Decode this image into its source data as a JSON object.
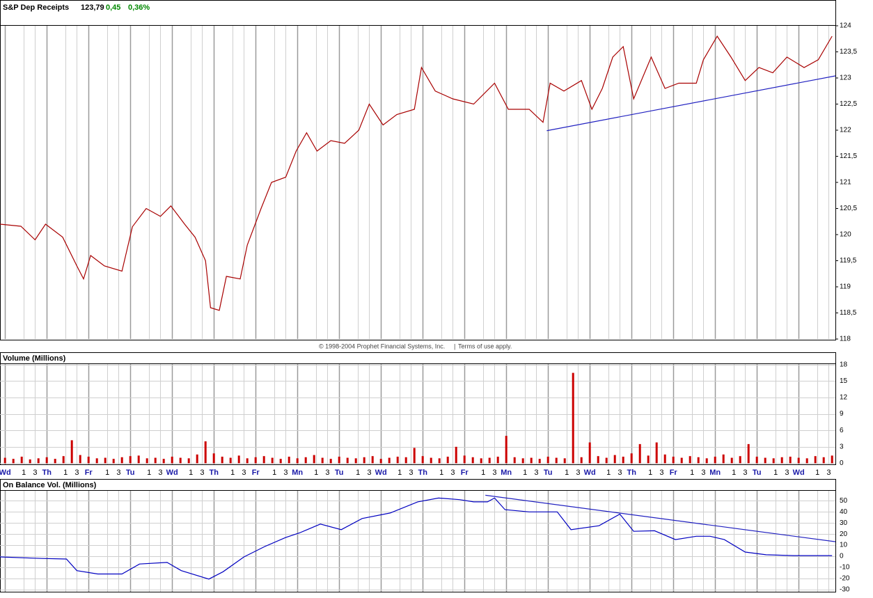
{
  "header": {
    "title": "S&P Dep Receipts",
    "last": "123,79",
    "change": "0,45",
    "change_pct": "0,36%"
  },
  "footer": {
    "copyright": "© 1998-2004 Prophet Financial Systems, Inc.",
    "separator": "|",
    "terms": "Terms of use apply."
  },
  "chart_data": [
    {
      "type": "line",
      "color": "#a80000",
      "hgrid": false,
      "vgrid": true,
      "xlim": [
        -0.12,
        19.88
      ],
      "ylim": [
        118,
        124
      ],
      "yticks": [
        118,
        {
          "value": 118.5,
          "label": "118,5"
        },
        119,
        {
          "value": 119.5,
          "label": "119,5"
        },
        120,
        {
          "value": 120.5,
          "label": "120,5"
        },
        121,
        {
          "value": 121.5,
          "label": "121,5"
        },
        122,
        {
          "value": 122.5,
          "label": "122,5"
        },
        123,
        {
          "value": 123.5,
          "label": "123,5"
        },
        124
      ],
      "x": [
        -0.12,
        0.38,
        0.72,
        0.97,
        1.38,
        1.72,
        1.88,
        2.05,
        2.38,
        2.8,
        3.05,
        3.38,
        3.72,
        3.97,
        4.3,
        4.55,
        4.8,
        4.92,
        5.13,
        5.3,
        5.63,
        5.8,
        6.13,
        6.38,
        6.72,
        6.97,
        7.22,
        7.47,
        7.8,
        8.13,
        8.47,
        8.72,
        9.05,
        9.38,
        9.8,
        9.97,
        10.3,
        10.72,
        11.22,
        11.72,
        12.05,
        12.55,
        12.88,
        13.05,
        13.38,
        13.8,
        14.05,
        14.3,
        14.55,
        14.8,
        15.05,
        15.47,
        15.8,
        16.13,
        16.55,
        16.72,
        17.05,
        17.38,
        17.72,
        18.05,
        18.38,
        18.72,
        19.13,
        19.47,
        19.8
      ],
      "values": [
        120.2,
        120.16,
        119.9,
        120.2,
        119.95,
        119.4,
        119.15,
        119.6,
        119.4,
        119.3,
        120.15,
        120.5,
        120.35,
        120.55,
        120.2,
        119.95,
        119.5,
        118.6,
        118.55,
        119.2,
        119.15,
        119.8,
        120.5,
        121.0,
        121.1,
        121.6,
        121.95,
        121.6,
        121.8,
        121.75,
        122.0,
        122.5,
        122.1,
        122.3,
        122.4,
        123.2,
        122.75,
        122.6,
        122.5,
        122.9,
        122.4,
        122.4,
        122.15,
        122.9,
        122.75,
        122.95,
        122.4,
        122.8,
        123.4,
        123.6,
        122.6,
        123.4,
        122.8,
        122.9,
        122.9,
        123.35,
        123.8,
        123.4,
        122.95,
        123.2,
        123.1,
        123.4,
        123.2,
        123.35,
        123.8
      ],
      "trendline": {
        "color": "#2020c0",
        "x": [
          12.97,
          19.88
        ],
        "values": [
          121.99,
          123.04
        ]
      }
    },
    {
      "type": "bar",
      "title": "Volume (Millions)",
      "color": "#cc0000",
      "hgrid": true,
      "vgrid": true,
      "xlim": [
        -0.12,
        19.88
      ],
      "ylim": [
        -0.2,
        18.1
      ],
      "yticks": [
        0,
        3,
        6,
        9,
        12,
        15,
        18
      ],
      "xticks": [
        {
          "value": 0,
          "label": "Wd"
        },
        {
          "value": 0.45,
          "label": "1"
        },
        {
          "value": 0.72,
          "label": "3"
        },
        {
          "value": 1,
          "label": "Th"
        },
        {
          "value": 1.45,
          "label": "1"
        },
        {
          "value": 1.72,
          "label": "3"
        },
        {
          "value": 2,
          "label": "Fr"
        },
        {
          "value": 2.45,
          "label": "1"
        },
        {
          "value": 2.72,
          "label": "3"
        },
        {
          "value": 3,
          "label": "Tu"
        },
        {
          "value": 3.45,
          "label": "1"
        },
        {
          "value": 3.72,
          "label": "3"
        },
        {
          "value": 4,
          "label": "Wd"
        },
        {
          "value": 4.45,
          "label": "1"
        },
        {
          "value": 4.72,
          "label": "3"
        },
        {
          "value": 5,
          "label": "Th"
        },
        {
          "value": 5.45,
          "label": "1"
        },
        {
          "value": 5.72,
          "label": "3"
        },
        {
          "value": 6,
          "label": "Fr"
        },
        {
          "value": 6.45,
          "label": "1"
        },
        {
          "value": 6.72,
          "label": "3"
        },
        {
          "value": 7,
          "label": "Mn"
        },
        {
          "value": 7.45,
          "label": "1"
        },
        {
          "value": 7.72,
          "label": "3"
        },
        {
          "value": 8,
          "label": "Tu"
        },
        {
          "value": 8.45,
          "label": "1"
        },
        {
          "value": 8.72,
          "label": "3"
        },
        {
          "value": 9,
          "label": "Wd"
        },
        {
          "value": 9.45,
          "label": "1"
        },
        {
          "value": 9.72,
          "label": "3"
        },
        {
          "value": 10,
          "label": "Th"
        },
        {
          "value": 10.45,
          "label": "1"
        },
        {
          "value": 10.72,
          "label": "3"
        },
        {
          "value": 11,
          "label": "Fr"
        },
        {
          "value": 11.45,
          "label": "1"
        },
        {
          "value": 11.72,
          "label": "3"
        },
        {
          "value": 12,
          "label": "Mn"
        },
        {
          "value": 12.45,
          "label": "1"
        },
        {
          "value": 12.72,
          "label": "3"
        },
        {
          "value": 13,
          "label": "Tu"
        },
        {
          "value": 13.45,
          "label": "1"
        },
        {
          "value": 13.72,
          "label": "3"
        },
        {
          "value": 14,
          "label": "Wd"
        },
        {
          "value": 14.45,
          "label": "1"
        },
        {
          "value": 14.72,
          "label": "3"
        },
        {
          "value": 15,
          "label": "Th"
        },
        {
          "value": 15.45,
          "label": "1"
        },
        {
          "value": 15.72,
          "label": "3"
        },
        {
          "value": 16,
          "label": "Fr"
        },
        {
          "value": 16.45,
          "label": "1"
        },
        {
          "value": 16.72,
          "label": "3"
        },
        {
          "value": 17,
          "label": "Mn"
        },
        {
          "value": 17.45,
          "label": "1"
        },
        {
          "value": 17.72,
          "label": "3"
        },
        {
          "value": 18,
          "label": "Tu"
        },
        {
          "value": 18.45,
          "label": "1"
        },
        {
          "value": 18.72,
          "label": "3"
        },
        {
          "value": 19,
          "label": "Wd"
        },
        {
          "value": 19.45,
          "label": "1"
        },
        {
          "value": 19.72,
          "label": "3"
        }
      ],
      "x": [
        0,
        0.2,
        0.4,
        0.6,
        0.8,
        1,
        1.2,
        1.4,
        1.6,
        1.8,
        2,
        2.2,
        2.4,
        2.6,
        2.8,
        3,
        3.2,
        3.4,
        3.6,
        3.8,
        4,
        4.2,
        4.4,
        4.6,
        4.8,
        5,
        5.2,
        5.4,
        5.6,
        5.8,
        6,
        6.2,
        6.4,
        6.6,
        6.8,
        7,
        7.2,
        7.4,
        7.6,
        7.8,
        8,
        8.2,
        8.4,
        8.6,
        8.8,
        9,
        9.2,
        9.4,
        9.6,
        9.8,
        10,
        10.2,
        10.4,
        10.6,
        10.8,
        11,
        11.2,
        11.4,
        11.6,
        11.8,
        12,
        12.2,
        12.4,
        12.6,
        12.8,
        13,
        13.2,
        13.4,
        13.6,
        13.8,
        14,
        14.2,
        14.4,
        14.6,
        14.8,
        15,
        15.2,
        15.4,
        15.6,
        15.8,
        16,
        16.2,
        16.4,
        16.6,
        16.8,
        17,
        17.2,
        17.4,
        17.6,
        17.8,
        18,
        18.2,
        18.4,
        18.6,
        18.8,
        19,
        19.2,
        19.4,
        19.6,
        19.8
      ],
      "values": [
        1.0,
        0.8,
        1.2,
        0.7,
        0.9,
        1.1,
        0.8,
        1.3,
        4.2,
        1.5,
        1.2,
        0.9,
        1.0,
        0.8,
        1.1,
        1.3,
        1.4,
        0.9,
        1.0,
        0.8,
        1.2,
        1.0,
        0.9,
        1.6,
        4.0,
        1.8,
        1.2,
        1.0,
        1.4,
        0.9,
        1.1,
        1.3,
        1.0,
        0.8,
        1.2,
        0.9,
        1.1,
        1.5,
        1.0,
        0.8,
        1.2,
        1.0,
        0.9,
        1.1,
        1.3,
        0.8,
        1.0,
        1.2,
        1.1,
        2.8,
        1.3,
        1.0,
        0.9,
        1.2,
        3.0,
        1.4,
        1.1,
        0.9,
        1.0,
        1.2,
        5.0,
        1.1,
        0.9,
        1.0,
        0.8,
        1.2,
        1.0,
        0.9,
        16.5,
        1.1,
        3.8,
        1.3,
        1.0,
        1.5,
        1.2,
        1.8,
        3.5,
        1.4,
        3.8,
        1.6,
        1.2,
        1.0,
        1.3,
        1.1,
        0.9,
        1.2,
        1.6,
        1.0,
        1.3,
        3.5,
        1.2,
        1.0,
        0.9,
        1.1,
        1.2,
        1.0,
        0.9,
        1.3,
        1.1,
        1.4
      ]
    },
    {
      "type": "line",
      "title": "On Balance Vol.  (Millions)",
      "color": "#0000c0",
      "hgrid": true,
      "vgrid": true,
      "xlim": [
        -0.12,
        19.88
      ],
      "ylim": [
        -32,
        59
      ],
      "yticks": [
        -30,
        -20,
        -10,
        0,
        10,
        20,
        30,
        40,
        50
      ],
      "x": [
        -0.12,
        0.88,
        1.47,
        1.72,
        2.22,
        2.8,
        3.22,
        3.88,
        4.22,
        4.88,
        5.22,
        5.72,
        6.22,
        6.72,
        7.05,
        7.55,
        8.05,
        8.55,
        9.22,
        9.88,
        10.38,
        10.88,
        11.22,
        11.55,
        11.72,
        11.97,
        12.55,
        13.22,
        13.55,
        14.22,
        14.72,
        15.05,
        15.55,
        16.05,
        16.55,
        16.88,
        17.22,
        17.72,
        18.22,
        18.88,
        19.38,
        19.8
      ],
      "values": [
        -0.6,
        -2,
        -2.5,
        -13,
        -16,
        -16,
        -7,
        -5.6,
        -13,
        -20.6,
        -14,
        -0.6,
        8.8,
        16.9,
        21,
        29,
        24,
        34,
        39,
        49,
        52.5,
        51,
        49,
        49,
        52.5,
        42,
        40,
        40,
        24,
        27.5,
        38,
        22.5,
        23,
        15,
        18,
        18,
        15,
        3.8,
        1.3,
        0.6,
        0.6,
        0.6
      ],
      "trendline": {
        "color": "#2020c0",
        "x": [
          11.5,
          19.88
        ],
        "values": [
          55,
          13.1
        ]
      }
    }
  ]
}
